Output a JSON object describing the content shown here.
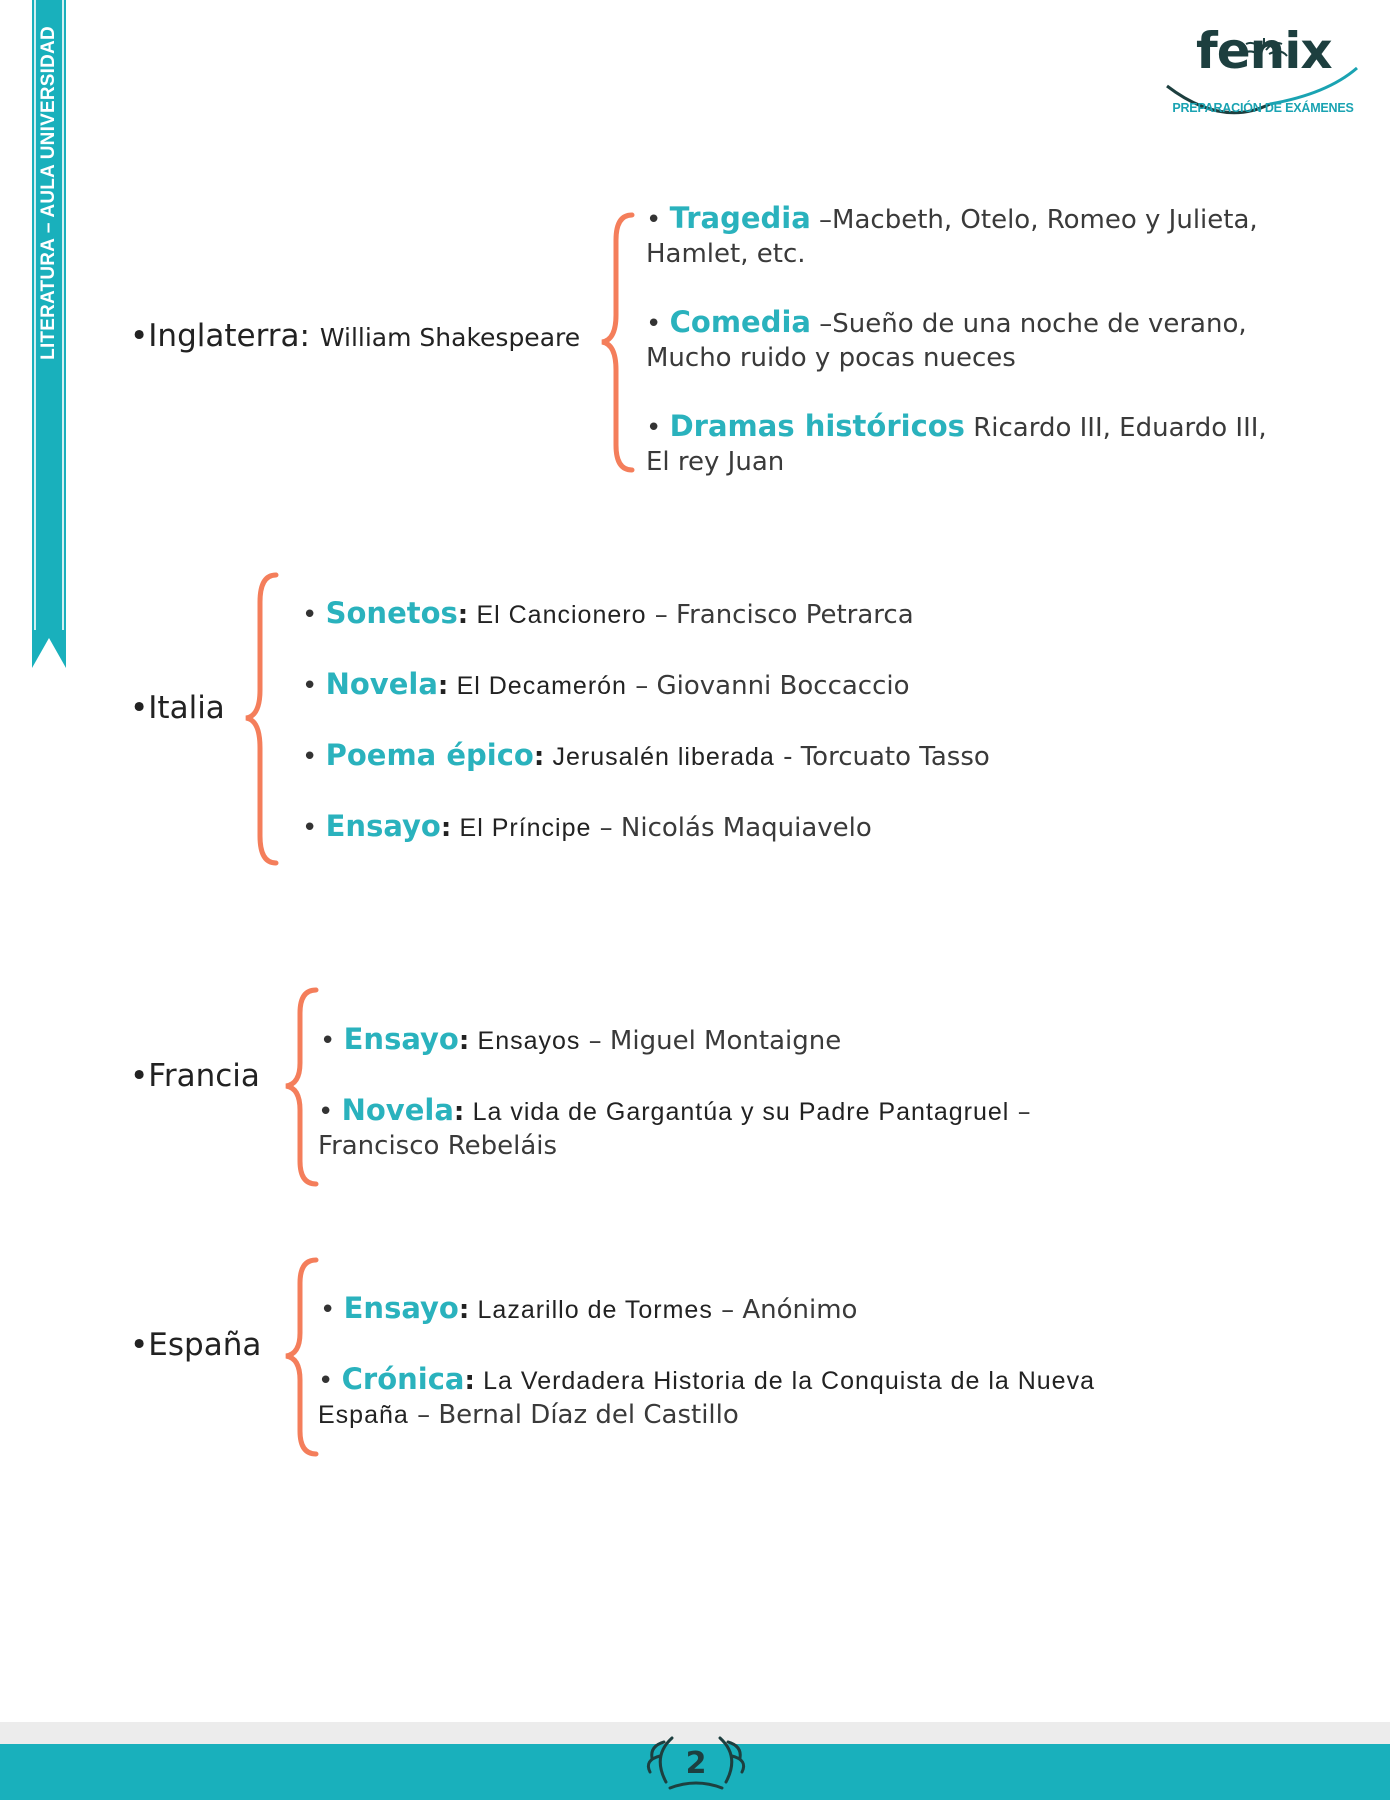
{
  "side_ribbon": {
    "text": "LITERATURA – AULA UNIVERSIDAD",
    "color": "#19b0bc"
  },
  "logo": {
    "word": "fenix",
    "tagline": "PREPARACIÓN DE EXÁMENES"
  },
  "colors": {
    "accent": "#2ab2bd",
    "brace": "#f47e5b",
    "footer": "#19b0bc"
  },
  "sections": {
    "inglaterra": {
      "country": "•Inglaterra:",
      "author": "William Shakespeare",
      "items": [
        {
          "bullet": "•",
          "term": "Tragedia",
          "rest": "–Macbeth, Otelo, Romeo y Julieta, Hamlet, etc."
        },
        {
          "bullet": "•",
          "term": "Comedia",
          "rest": "–Sueño de una noche de verano, Mucho ruido y pocas nueces"
        },
        {
          "bullet": "•",
          "term": "Dramas históricos",
          "rest": "Ricardo III, Eduardo III, El rey Juan"
        }
      ]
    },
    "italia": {
      "country": "•Italia",
      "items": [
        {
          "bullet": "•",
          "term": "Sonetos",
          "colon": ":",
          "work": "El Cancionero",
          "author": "– Francisco Petrarca"
        },
        {
          "bullet": "•",
          "term": "Novela",
          "colon": ":",
          "work": "El Decamerón",
          "author": "– Giovanni Boccaccio"
        },
        {
          "bullet": "•",
          "term": "Poema épico",
          "colon": ":",
          "work": "Jerusalén liberada",
          "author": "- Torcuato Tasso"
        },
        {
          "bullet": "•",
          "term": "Ensayo",
          "colon": ":",
          "work": "El Príncipe",
          "author": "– Nicolás Maquiavelo"
        }
      ]
    },
    "francia": {
      "country": "•Francia",
      "items": [
        {
          "bullet": "•",
          "term": "Ensayo",
          "colon": ":",
          "work": "Ensayos",
          "author": "– Miguel Montaigne"
        },
        {
          "bullet": "•",
          "term": "Novela",
          "colon": ":",
          "work": "La vida de Gargantúa y su Padre Pantagruel",
          "author": "– Francisco Rebeláis"
        }
      ]
    },
    "espana": {
      "country": "•España",
      "items": [
        {
          "bullet": "•",
          "term": "Ensayo",
          "colon": ":",
          "work": "Lazarillo de Tormes",
          "author": "– Anónimo"
        },
        {
          "bullet": "•",
          "term": "Crónica",
          "colon": ":",
          "work": "La Verdadera Historia de la Conquista de la Nueva España",
          "author": "– Bernal Díaz del Castillo"
        }
      ]
    }
  },
  "footer": {
    "page_number": "2"
  }
}
